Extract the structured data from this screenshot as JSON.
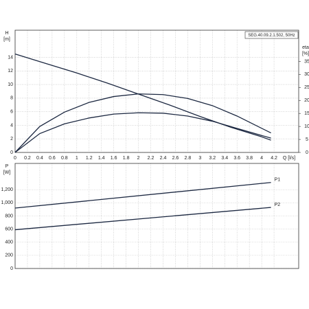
{
  "chart_data": [
    {
      "type": "line",
      "y_label": [
        "H",
        "[m]"
      ],
      "y2_label": [
        "eta",
        "[%]"
      ],
      "x_label": "Q [l/s]",
      "annotation": "SEG.40.09.2.1.502, 50Hz",
      "xlim": [
        0,
        4.6
      ],
      "xticks": [
        0,
        0.2,
        0.4,
        0.6,
        0.8,
        1,
        1.2,
        1.4,
        1.6,
        1.8,
        2,
        2.2,
        2.4,
        2.6,
        2.8,
        3,
        3.2,
        3.4,
        3.6,
        3.8,
        4,
        4.2
      ],
      "ylim": [
        0,
        18
      ],
      "yticks": [
        0,
        2,
        4,
        6,
        8,
        10,
        12,
        14
      ],
      "y2lim": [
        0,
        47
      ],
      "y2ticks": [
        0,
        5,
        10,
        15,
        20,
        25,
        30,
        35
      ],
      "grid": true,
      "series": [
        {
          "color": "#1b2740",
          "x": [
            0,
            0.5,
            1,
            1.5,
            2,
            2.5,
            3,
            3.5,
            4,
            4.15
          ],
          "values": [
            14.5,
            13.1,
            11.7,
            10.2,
            8.6,
            7,
            5.3,
            3.7,
            2.3,
            1.8
          ]
        },
        {
          "color": "#1b2740",
          "axis": "y2",
          "x": [
            0,
            0.4,
            0.8,
            1.2,
            1.6,
            2,
            2.4,
            2.8,
            3.2,
            3.6,
            4.15
          ],
          "values": [
            0,
            10,
            15.5,
            19.25,
            21.5,
            22.5,
            22.25,
            20.75,
            18,
            14,
            7.5
          ]
        },
        {
          "color": "#1b2740",
          "axis": "y2",
          "x": [
            0,
            0.4,
            0.8,
            1.2,
            1.6,
            2,
            2.4,
            2.8,
            3.2,
            3.6,
            4.15
          ],
          "values": [
            0,
            7.25,
            11,
            13.25,
            14.75,
            15.25,
            15.1,
            14,
            12,
            9.25,
            5.5
          ]
        }
      ]
    },
    {
      "type": "line",
      "y_label": [
        "P",
        "[W]"
      ],
      "xlim": [
        0,
        4.6
      ],
      "xticks": [
        0,
        0.2,
        0.4,
        0.6,
        0.8,
        1,
        1.2,
        1.4,
        1.6,
        1.8,
        2,
        2.2,
        2.4,
        2.6,
        2.8,
        3,
        3.2,
        3.4,
        3.6,
        3.8,
        4,
        4.2
      ],
      "ylim": [
        0,
        1600
      ],
      "yticks": [
        0,
        200,
        400,
        600,
        800,
        {
          "value": 1000,
          "label": "1,000"
        },
        {
          "value": 1200,
          "label": "1,200"
        }
      ],
      "grid": true,
      "series": [
        {
          "name": "P1",
          "color": "#1b2740",
          "x": [
            0,
            4.15
          ],
          "values": [
            920,
            1310
          ]
        },
        {
          "name": "P2",
          "color": "#1b2740",
          "x": [
            0,
            4.15
          ],
          "values": [
            590,
            930
          ]
        }
      ]
    }
  ]
}
